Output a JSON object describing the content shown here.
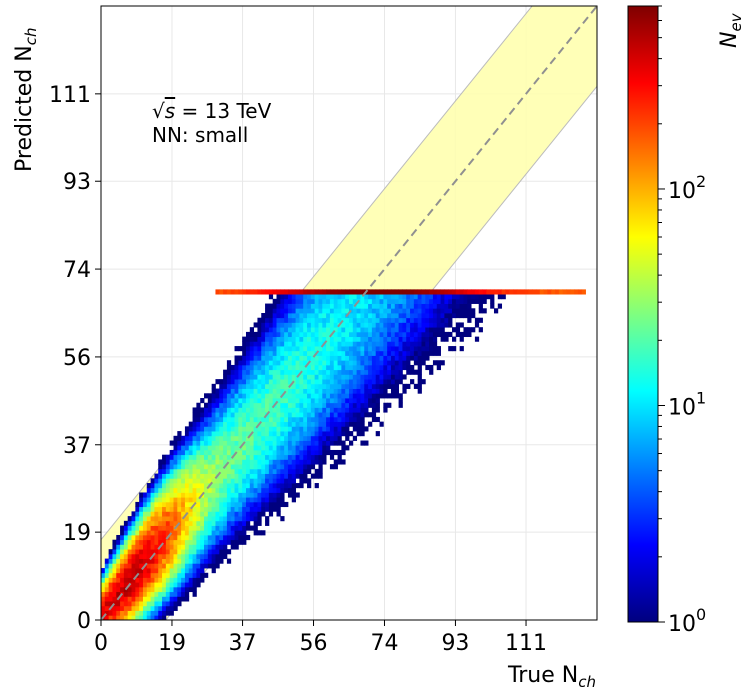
{
  "chart_data": {
    "type": "heatmap",
    "title": "",
    "xlabel": "True N",
    "xlabel_sub": "ch",
    "ylabel": "Predicted N",
    "ylabel_sub": "ch",
    "colorbar_label": "N",
    "colorbar_label_sub": "ev",
    "colorbar_scale": "log",
    "colorbar_range": [
      1,
      700
    ],
    "colorbar_ticks": [
      {
        "value": 1,
        "base": "10",
        "exp": "0"
      },
      {
        "value": 10,
        "base": "10",
        "exp": "1"
      },
      {
        "value": 100,
        "base": "10",
        "exp": "2"
      }
    ],
    "colormap": [
      "#00007f",
      "#0000ff",
      "#007fff",
      "#00ffff",
      "#7fff7f",
      "#ffff00",
      "#ff7f00",
      "#ff0000",
      "#7f0000"
    ],
    "xlim": [
      0,
      130
    ],
    "ylim": [
      0,
      130
    ],
    "xticks": [
      "0",
      "19",
      "37",
      "56",
      "74",
      "93",
      "111"
    ],
    "yticks": [
      "0",
      "19",
      "37",
      "56",
      "74",
      "93",
      "111"
    ],
    "tick_values": [
      0,
      18.6,
      37.1,
      55.7,
      74.3,
      92.9,
      111.4
    ],
    "grid": true,
    "diagonal": "y = x (dashed grey)",
    "band": {
      "color": "#ffffb0",
      "lower_offset": -17,
      "upper_offset": 17
    },
    "saturation_row": {
      "y": 69.5,
      "x_from": 30,
      "x_to": 127
    },
    "annotations": {
      "energy_prefix": "√",
      "energy_var": "s",
      "energy_value": " = 13 TeV",
      "network": "NN: small"
    }
  }
}
